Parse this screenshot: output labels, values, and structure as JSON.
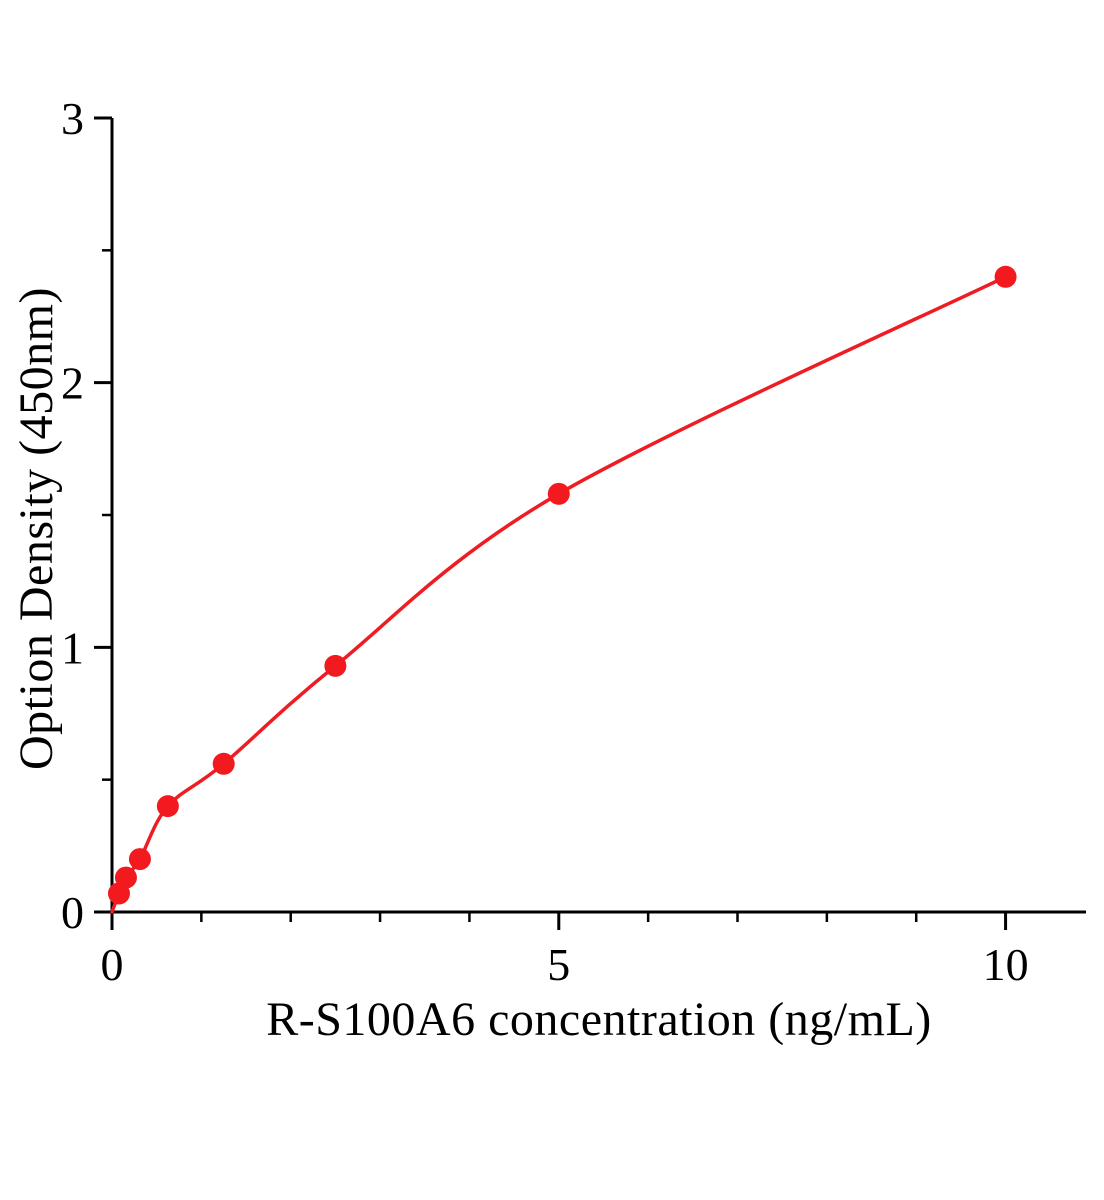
{
  "figure": {
    "background": "#ffffff"
  },
  "chart_data": {
    "type": "scatter",
    "title": "",
    "xlabel": "R-S100A6 concentration (ng/mL)",
    "ylabel": "Option Density (450nm)",
    "x": [
      0.078,
      0.156,
      0.3125,
      0.625,
      1.25,
      2.5,
      5,
      10
    ],
    "y": [
      0.07,
      0.13,
      0.2,
      0.4,
      0.56,
      0.93,
      1.58,
      2.4
    ],
    "curve_start": [
      0,
      0
    ],
    "xlim": [
      0,
      10.9
    ],
    "ylim": [
      0,
      3
    ],
    "x_major_ticks": [
      0,
      5,
      10
    ],
    "x_minor_ticks": [
      1,
      2,
      3,
      4,
      6,
      7,
      8,
      9
    ],
    "y_major_ticks": [
      0,
      1,
      2,
      3
    ],
    "y_minor_ticks": [
      0.5,
      1.5,
      2.5
    ],
    "grid": false,
    "legend": null,
    "marker_color": "#f2191f",
    "line_color": "#ee1c23",
    "axis_color": "#000000"
  }
}
